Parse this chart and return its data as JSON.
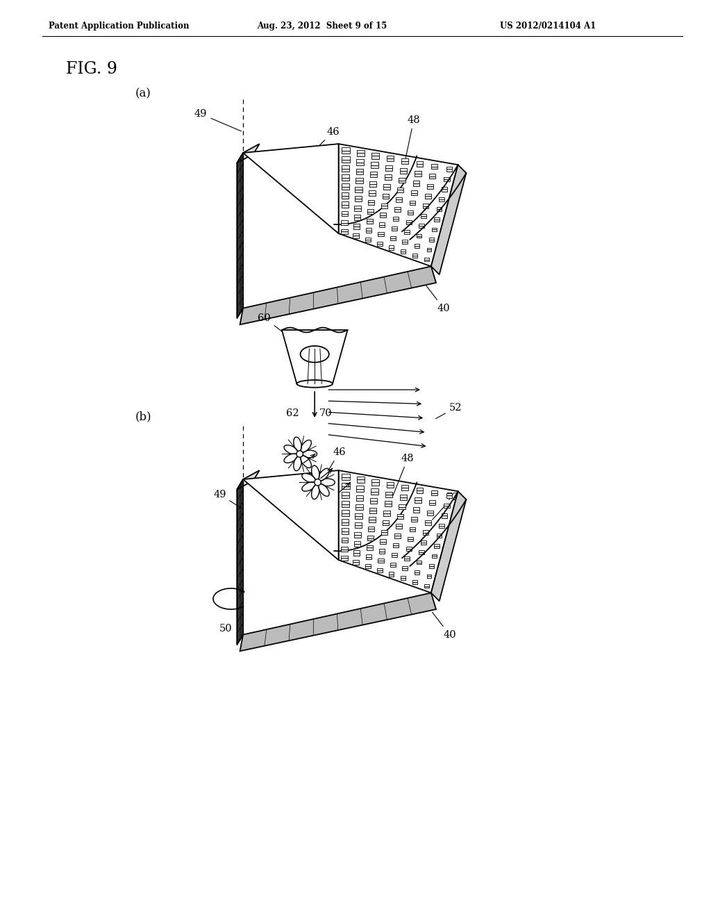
{
  "bg_color": "#ffffff",
  "fig_width": 10.24,
  "fig_height": 13.2,
  "dpi": 100,
  "header_text": "Patent Application Publication",
  "header_date": "Aug. 23, 2012  Sheet 9 of 15",
  "header_patent": "US 2012/0214104 A1",
  "fig_label": "FIG. 9",
  "sub_a_label": "(a)",
  "sub_b_label": "(b)",
  "line_color": "#000000",
  "text_color": "#000000"
}
